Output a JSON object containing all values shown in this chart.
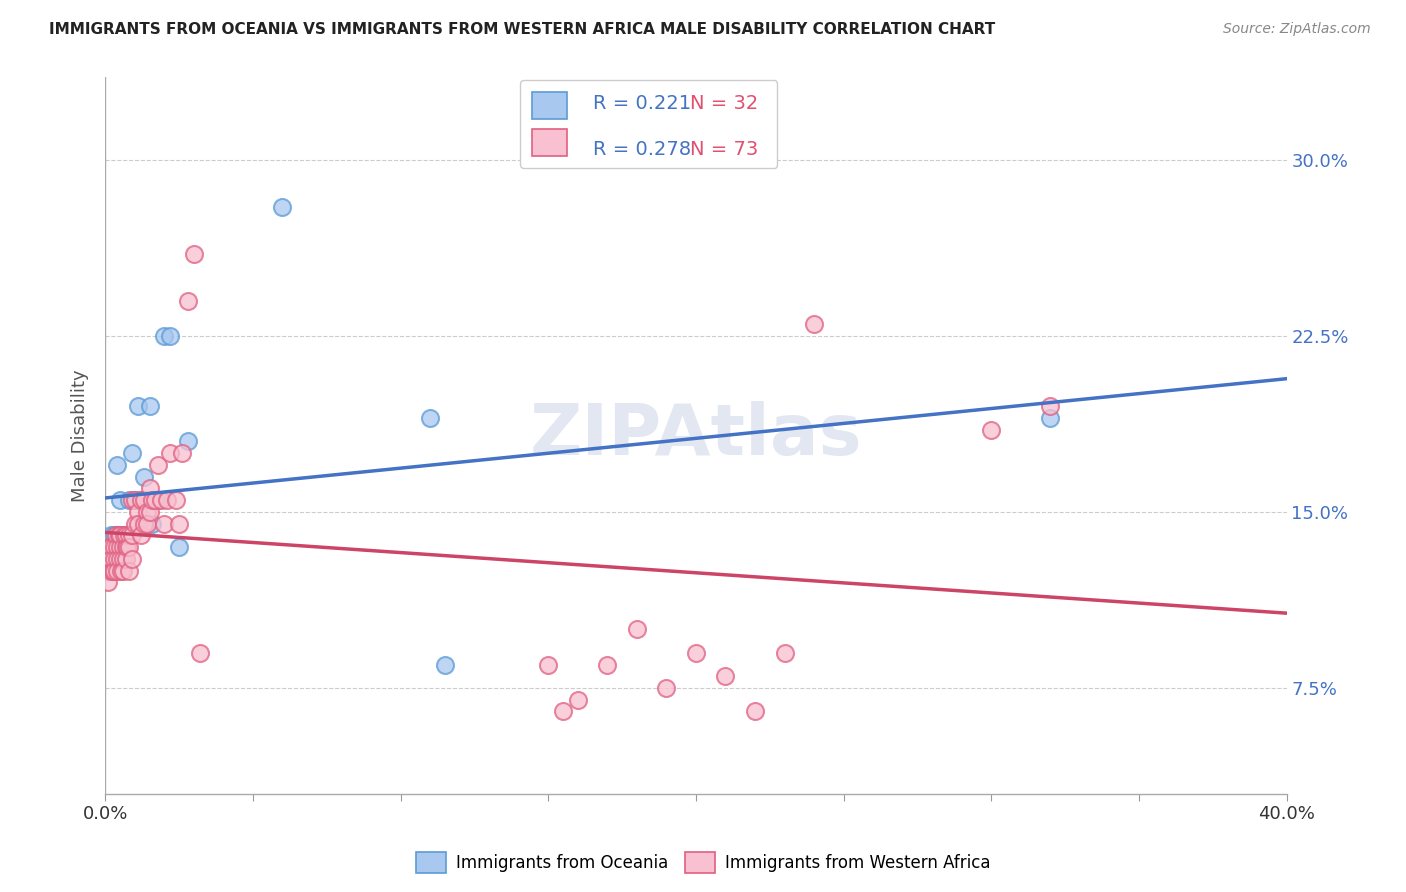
{
  "title": "IMMIGRANTS FROM OCEANIA VS IMMIGRANTS FROM WESTERN AFRICA MALE DISABILITY CORRELATION CHART",
  "source": "Source: ZipAtlas.com",
  "ylabel": "Male Disability",
  "ytick_labels": [
    "7.5%",
    "15.0%",
    "22.5%",
    "30.0%"
  ],
  "ytick_values": [
    0.075,
    0.15,
    0.225,
    0.3
  ],
  "xlim": [
    0.0,
    0.4
  ],
  "ylim": [
    0.03,
    0.335
  ],
  "series1_name": "Immigrants from Oceania",
  "series1_color": "#A8C8F0",
  "series1_edge_color": "#5B9BD5",
  "series1_line_color": "#4472C4",
  "series1_R": 0.221,
  "series1_N": 32,
  "series1_x": [
    0.0008,
    0.0015,
    0.002,
    0.002,
    0.003,
    0.003,
    0.004,
    0.004,
    0.004,
    0.005,
    0.005,
    0.005,
    0.006,
    0.006,
    0.007,
    0.008,
    0.009,
    0.01,
    0.011,
    0.012,
    0.013,
    0.015,
    0.016,
    0.018,
    0.02,
    0.022,
    0.025,
    0.028,
    0.06,
    0.11,
    0.115,
    0.32
  ],
  "series1_y": [
    0.135,
    0.13,
    0.135,
    0.14,
    0.13,
    0.14,
    0.135,
    0.14,
    0.17,
    0.155,
    0.14,
    0.13,
    0.135,
    0.14,
    0.14,
    0.155,
    0.175,
    0.155,
    0.195,
    0.155,
    0.165,
    0.195,
    0.145,
    0.155,
    0.225,
    0.225,
    0.135,
    0.18,
    0.28,
    0.19,
    0.085,
    0.19
  ],
  "series2_name": "Immigrants from Western Africa",
  "series2_color": "#F8C0D0",
  "series2_edge_color": "#E06080",
  "series2_line_color": "#CC4466",
  "series2_R": 0.278,
  "series2_N": 73,
  "series2_x": [
    0.0005,
    0.0008,
    0.001,
    0.0012,
    0.0015,
    0.002,
    0.002,
    0.002,
    0.0025,
    0.003,
    0.003,
    0.003,
    0.0035,
    0.004,
    0.004,
    0.004,
    0.0045,
    0.005,
    0.005,
    0.005,
    0.0055,
    0.006,
    0.006,
    0.006,
    0.0065,
    0.007,
    0.007,
    0.007,
    0.0075,
    0.008,
    0.008,
    0.008,
    0.009,
    0.009,
    0.009,
    0.01,
    0.01,
    0.011,
    0.011,
    0.012,
    0.012,
    0.013,
    0.013,
    0.014,
    0.014,
    0.015,
    0.015,
    0.016,
    0.017,
    0.018,
    0.019,
    0.02,
    0.021,
    0.022,
    0.024,
    0.025,
    0.026,
    0.028,
    0.03,
    0.032,
    0.15,
    0.155,
    0.16,
    0.17,
    0.18,
    0.19,
    0.2,
    0.21,
    0.22,
    0.23,
    0.24,
    0.3,
    0.32
  ],
  "series2_y": [
    0.125,
    0.13,
    0.12,
    0.135,
    0.13,
    0.135,
    0.125,
    0.13,
    0.125,
    0.135,
    0.13,
    0.125,
    0.14,
    0.135,
    0.13,
    0.125,
    0.14,
    0.135,
    0.13,
    0.14,
    0.125,
    0.135,
    0.13,
    0.125,
    0.14,
    0.135,
    0.14,
    0.13,
    0.135,
    0.14,
    0.135,
    0.125,
    0.14,
    0.13,
    0.155,
    0.145,
    0.155,
    0.15,
    0.145,
    0.155,
    0.14,
    0.155,
    0.145,
    0.15,
    0.145,
    0.16,
    0.15,
    0.155,
    0.155,
    0.17,
    0.155,
    0.145,
    0.155,
    0.175,
    0.155,
    0.145,
    0.175,
    0.24,
    0.26,
    0.09,
    0.085,
    0.065,
    0.07,
    0.085,
    0.1,
    0.075,
    0.09,
    0.08,
    0.065,
    0.09,
    0.23,
    0.185,
    0.195
  ],
  "background_color": "#FFFFFF",
  "grid_color": "#CCCCCC",
  "watermark": "ZIPAtlas",
  "legend_R_color": "#4472C4",
  "legend_N_color": "#E05070"
}
